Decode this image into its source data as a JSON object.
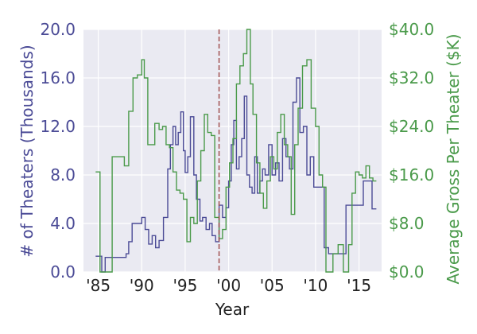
{
  "chart_data": {
    "type": "line",
    "title": "",
    "xlabel": "Year",
    "ylabel_left": "# of Theaters (Thousands)",
    "ylabel_right": "Average Gross Per Theater ($K)",
    "xlim": [
      1983.3,
      2017.6
    ],
    "ylim_left": [
      0,
      20
    ],
    "ylim_right": [
      0,
      40
    ],
    "x_ticks": [
      {
        "value": 1985,
        "label": "'85"
      },
      {
        "value": 1990,
        "label": "'90"
      },
      {
        "value": 1995,
        "label": "'95"
      },
      {
        "value": 2000,
        "label": "'00"
      },
      {
        "value": 2005,
        "label": "'05"
      },
      {
        "value": 2010,
        "label": "'10"
      },
      {
        "value": 2015,
        "label": "'15"
      }
    ],
    "y_ticks_left": [
      {
        "value": 0,
        "label": "0.0"
      },
      {
        "value": 4,
        "label": "4.0"
      },
      {
        "value": 8,
        "label": "8.0"
      },
      {
        "value": 12,
        "label": "12.0"
      },
      {
        "value": 16,
        "label": "16.0"
      },
      {
        "value": 20,
        "label": "20.0"
      }
    ],
    "y_ticks_right": [
      {
        "value": 0,
        "label": "$0.0"
      },
      {
        "value": 8,
        "label": "$8.0"
      },
      {
        "value": 16,
        "label": "$16.0"
      },
      {
        "value": 24,
        "label": "$24.0"
      },
      {
        "value": 32,
        "label": "$32.0"
      },
      {
        "value": 40,
        "label": "$40.0"
      }
    ],
    "vline": {
      "x": 1998.9,
      "color": "#a05050"
    },
    "grid": true,
    "series": [
      {
        "axis": "left",
        "color": "#4b4b96",
        "x": [
          1984.7,
          1985.4,
          1985.8,
          1986.5,
          1987.0,
          1987.5,
          1988.2,
          1988.5,
          1988.9,
          1989.2,
          1989.6,
          1990.0,
          1990.4,
          1990.8,
          1991.2,
          1991.6,
          1992.0,
          1992.5,
          1993.0,
          1993.3,
          1993.6,
          1993.9,
          1994.2,
          1994.5,
          1994.8,
          1995.0,
          1995.3,
          1995.6,
          1996.0,
          1996.3,
          1996.7,
          1997.0,
          1997.4,
          1997.8,
          1998.1,
          1998.5,
          1998.9,
          1999.3,
          1999.7,
          2000.0,
          2000.3,
          2000.6,
          2000.9,
          2001.2,
          2001.5,
          2001.8,
          2002.1,
          2002.4,
          2002.7,
          2003.0,
          2003.3,
          2003.6,
          2003.9,
          2004.2,
          2004.6,
          2005.0,
          2005.4,
          2005.8,
          2006.2,
          2006.6,
          2007.0,
          2007.4,
          2007.8,
          2008.2,
          2008.6,
          2009.0,
          2009.4,
          2009.8,
          2010.2,
          2010.6,
          2011.0,
          2011.5,
          2012.0,
          2012.5,
          2013.0,
          2013.5,
          2014.0,
          2014.5,
          2015.0,
          2015.5,
          2016.0,
          2016.5,
          2016.9
        ],
        "y": [
          1.3,
          0.0,
          1.2,
          1.2,
          1.2,
          1.2,
          1.5,
          2.5,
          4.0,
          4.0,
          4.0,
          4.5,
          3.5,
          2.3,
          3.0,
          2.0,
          2.6,
          4.5,
          8.5,
          10.5,
          12.0,
          10.5,
          11.5,
          13.2,
          10.0,
          8.2,
          9.5,
          12.8,
          8.0,
          6.0,
          4.2,
          4.5,
          3.5,
          4.0,
          3.0,
          2.5,
          5.5,
          4.5,
          5.3,
          7.5,
          10.5,
          12.5,
          8.5,
          9.5,
          11.0,
          14.5,
          8.0,
          7.0,
          6.5,
          9.5,
          6.5,
          7.5,
          8.5,
          8.0,
          10.5,
          8.0,
          9.0,
          7.5,
          11.0,
          9.5,
          8.5,
          14.0,
          16.0,
          11.5,
          12.0,
          8.0,
          9.5,
          7.0,
          7.0,
          7.0,
          2.0,
          1.5,
          1.5,
          1.5,
          1.5,
          5.5,
          5.5,
          5.5,
          5.5,
          7.5,
          7.5,
          5.2,
          5.2
        ]
      },
      {
        "axis": "right",
        "color": "#4a9a4a",
        "x": [
          1984.7,
          1985.2,
          1986.0,
          1986.6,
          1987.2,
          1988.0,
          1988.5,
          1989.0,
          1989.5,
          1990.0,
          1990.3,
          1990.7,
          1991.0,
          1991.5,
          1992.0,
          1992.4,
          1992.8,
          1993.2,
          1993.6,
          1994.0,
          1994.4,
          1994.8,
          1995.2,
          1995.6,
          1996.0,
          1996.4,
          1996.8,
          1997.2,
          1997.6,
          1998.0,
          1998.4,
          1998.9,
          1999.3,
          1999.7,
          2000.1,
          2000.5,
          2000.9,
          2001.3,
          2001.7,
          2002.1,
          2002.5,
          2002.8,
          2003.2,
          2003.6,
          2004.0,
          2004.4,
          2004.8,
          2005.2,
          2005.6,
          2006.0,
          2006.4,
          2006.8,
          2007.2,
          2007.6,
          2008.0,
          2008.5,
          2009.0,
          2009.5,
          2010.0,
          2010.4,
          2010.8,
          2011.2,
          2011.6,
          2012.0,
          2012.6,
          2013.2,
          2013.8,
          2014.2,
          2014.6,
          2015.0,
          2015.4,
          2015.8,
          2016.2,
          2016.6,
          2016.9
        ],
        "y": [
          16.5,
          0.0,
          0.0,
          19.0,
          19.0,
          17.5,
          26.5,
          32.0,
          32.5,
          35.0,
          32.0,
          21.0,
          21.0,
          24.5,
          23.5,
          24.0,
          21.0,
          20.5,
          16.5,
          13.5,
          13.0,
          12.0,
          5.0,
          9.0,
          8.0,
          15.0,
          20.0,
          26.0,
          23.0,
          22.5,
          9.0,
          5.5,
          7.0,
          14.0,
          18.0,
          22.0,
          31.0,
          34.0,
          36.0,
          40.0,
          31.0,
          26.0,
          18.0,
          13.0,
          10.5,
          15.0,
          19.0,
          17.0,
          23.0,
          26.0,
          21.0,
          19.0,
          9.5,
          21.0,
          27.0,
          34.0,
          35.0,
          27.0,
          24.0,
          16.0,
          14.0,
          0.0,
          0.0,
          3.0,
          4.5,
          0.0,
          4.5,
          13.0,
          16.5,
          16.0,
          15.5,
          17.5,
          15.5,
          15.0,
          15.0
        ]
      }
    ]
  }
}
